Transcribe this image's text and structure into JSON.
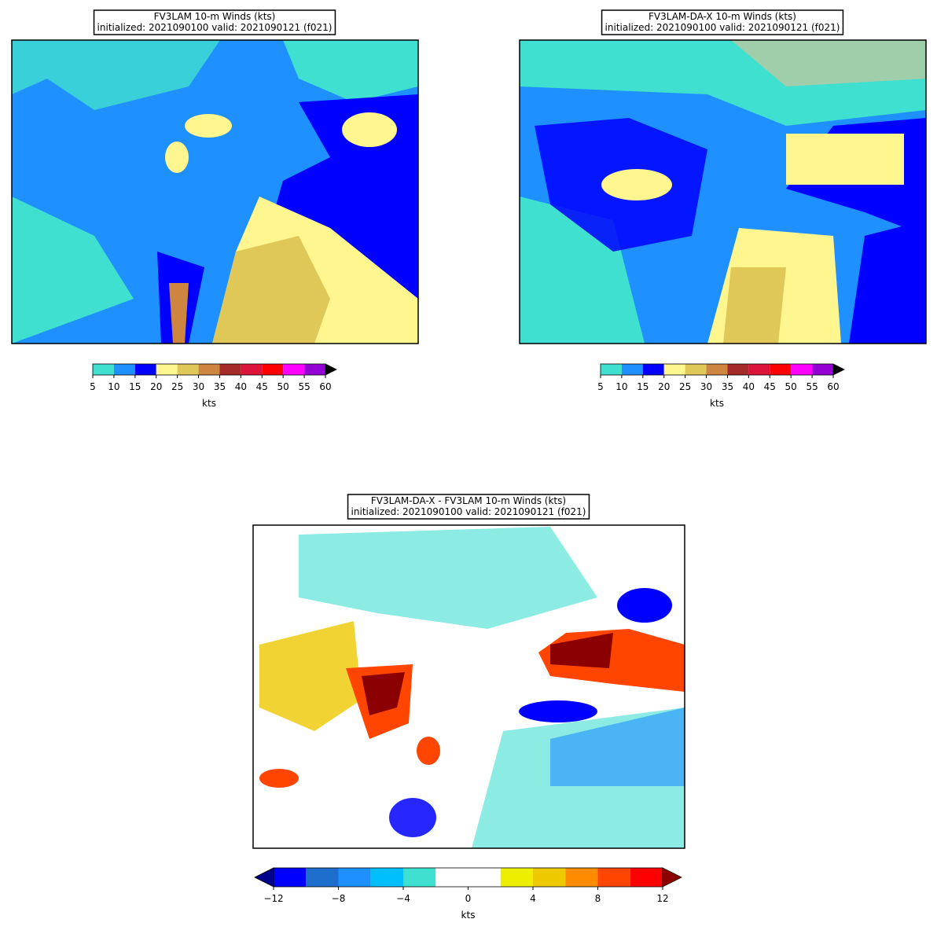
{
  "panels": [
    {
      "title": [
        "FV3LAM 10-m Winds (kts)",
        "initialized: 2021090100 valid: 2021090121 (f021)"
      ],
      "colorbar": {
        "boundaries": [
          5,
          10,
          15,
          20,
          25,
          30,
          35,
          40,
          45,
          50,
          55,
          60
        ],
        "colors": [
          "#40e0d0",
          "#1e90ff",
          "#0000ff",
          "#fff68f",
          "#e0c858",
          "#cd853f",
          "#a52a2a",
          "#dc143c",
          "#ff0000",
          "#ff00ff",
          "#9400d3"
        ],
        "extend_max_color": "#000000",
        "ticks": [
          5,
          10,
          15,
          20,
          25,
          30,
          35,
          40,
          45,
          50,
          55,
          60
        ],
        "label": "kts"
      }
    },
    {
      "title": [
        "FV3LAM-DA-X 10-m Winds (kts)",
        "initialized: 2021090100 valid: 2021090121 (f021)"
      ],
      "colorbar": {
        "boundaries": [
          5,
          10,
          15,
          20,
          25,
          30,
          35,
          40,
          45,
          50,
          55,
          60
        ],
        "colors": [
          "#40e0d0",
          "#1e90ff",
          "#0000ff",
          "#fff68f",
          "#e0c858",
          "#cd853f",
          "#a52a2a",
          "#dc143c",
          "#ff0000",
          "#ff00ff",
          "#9400d3"
        ],
        "extend_max_color": "#000000",
        "ticks": [
          5,
          10,
          15,
          20,
          25,
          30,
          35,
          40,
          45,
          50,
          55,
          60
        ],
        "label": "kts"
      }
    },
    {
      "title": [
        "FV3LAM-DA-X - FV3LAM 10-m Winds (kts)",
        "initialized: 2021090100 valid: 2021090121 (f021)"
      ],
      "colorbar": {
        "boundaries": [
          -12,
          -10,
          -8,
          -6,
          -4,
          -2,
          0,
          2,
          4,
          6,
          8,
          10,
          12
        ],
        "colors": [
          "#0000ff",
          "#1e6fcd",
          "#1e90ff",
          "#00bfff",
          "#40e0d0",
          "#ffffff",
          "#ffffff",
          "#eeee00",
          "#eec900",
          "#ff8c00",
          "#ff4500",
          "#ff0000"
        ],
        "extend_min_color": "#00008b",
        "extend_max_color": "#8b0000",
        "ticks": [
          {
            "value": -12,
            "label": "−12"
          },
          {
            "value": -8,
            "label": "−8"
          },
          {
            "value": -4,
            "label": "−4"
          },
          0,
          4,
          8,
          12
        ],
        "label": "kts"
      }
    }
  ]
}
